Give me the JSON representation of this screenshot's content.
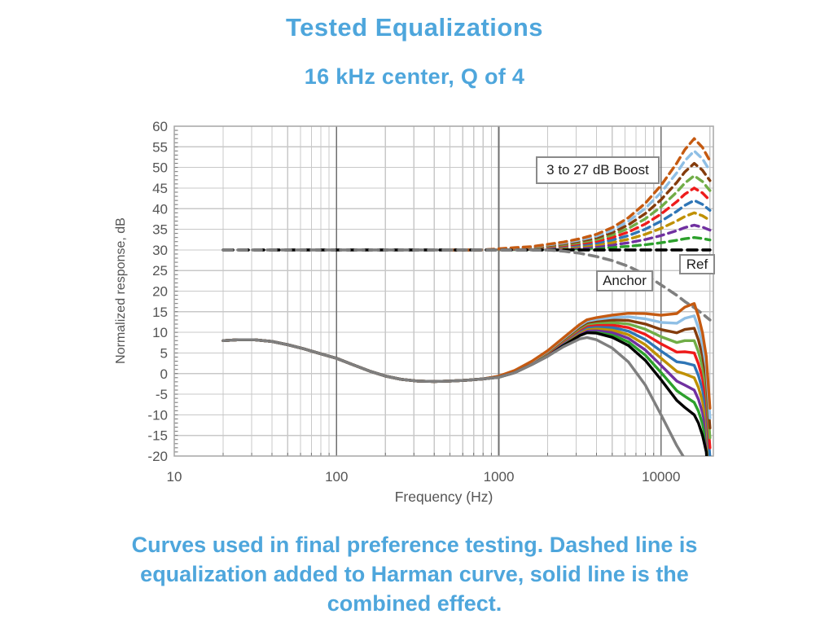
{
  "title": "Tested Equalizations",
  "subtitle": "16 kHz center, Q of 4",
  "caption": {
    "lines": [
      "Curves used in final preference testing. Dashed line is",
      "equalization added to Harman curve, solid line is the",
      "combined effect."
    ]
  },
  "theme": {
    "heading_color": "#4EA6DC",
    "axis_text_color": "#545454",
    "grid_color": "#C8C8C8",
    "grid_major_color": "#6F6F6F",
    "plot_border_color": "#A6A6A6",
    "annotation_border_color": "#8A8A8A",
    "annotation_text_color": "#1F1F1F"
  },
  "chart_data": {
    "type": "line",
    "title": "Tested Equalizations, 16 kHz center, Q of 4",
    "xlabel": "Frequency (Hz)",
    "ylabel": "Normalized response, dB",
    "xscale": "log",
    "xlim": [
      10,
      21000
    ],
    "ylim": [
      -20,
      60
    ],
    "xticks": [
      10,
      100,
      1000,
      10000
    ],
    "yticks": [
      60,
      55,
      50,
      45,
      40,
      35,
      30,
      25,
      20,
      15,
      10,
      5,
      0,
      -5,
      -10,
      -15,
      -20
    ],
    "ytick_minor_step_db": 1,
    "grid": true,
    "annotations": [
      {
        "label": "3 to 27 dB Boost"
      },
      {
        "label": "Ref"
      },
      {
        "label": "Anchor"
      }
    ],
    "eq_display_offset_db": 30,
    "eq_center_hz": 16000,
    "eq_q": 4,
    "boosts_db": [
      3,
      6,
      9,
      12,
      15,
      18,
      21,
      24,
      27
    ],
    "boost_colors": [
      "#2CA02C",
      "#7030A0",
      "#BF9000",
      "#2E75B6",
      "#EE1B1B",
      "#70AD47",
      "#843C0C",
      "#8FBFE5",
      "#C55A11"
    ],
    "ref_color": "#000000",
    "anchor_color": "#7F7F7F",
    "bell_shape": [
      [
        1000,
        0.01
      ],
      [
        1250,
        0.02
      ],
      [
        1600,
        0.03
      ],
      [
        2000,
        0.05
      ],
      [
        2500,
        0.07
      ],
      [
        3150,
        0.1
      ],
      [
        4000,
        0.14
      ],
      [
        5000,
        0.2
      ],
      [
        6300,
        0.29
      ],
      [
        8000,
        0.42
      ],
      [
        10000,
        0.58
      ],
      [
        12500,
        0.78
      ],
      [
        14000,
        0.9
      ],
      [
        16000,
        1.0
      ],
      [
        18000,
        0.92
      ],
      [
        20000,
        0.8
      ]
    ],
    "ref_response": [
      [
        20,
        8
      ],
      [
        25,
        8.2
      ],
      [
        31,
        8.2
      ],
      [
        40,
        7.8
      ],
      [
        50,
        7
      ],
      [
        63,
        6
      ],
      [
        80,
        4.8
      ],
      [
        100,
        3.7
      ],
      [
        125,
        2.2
      ],
      [
        160,
        0.6
      ],
      [
        200,
        -0.6
      ],
      [
        250,
        -1.4
      ],
      [
        315,
        -1.8
      ],
      [
        400,
        -1.9
      ],
      [
        500,
        -1.8
      ],
      [
        630,
        -1.6
      ],
      [
        800,
        -1.3
      ],
      [
        1000,
        -0.9
      ],
      [
        1250,
        0.2
      ],
      [
        1600,
        2.2
      ],
      [
        2000,
        4.2
      ],
      [
        2500,
        6.8
      ],
      [
        3150,
        9.2
      ],
      [
        3500,
        9.9
      ],
      [
        4000,
        9.8
      ],
      [
        5000,
        8.8
      ],
      [
        6300,
        6.8
      ],
      [
        8000,
        3.2
      ],
      [
        10000,
        -1.5
      ],
      [
        12500,
        -6.5
      ],
      [
        14000,
        -8.2
      ],
      [
        16000,
        -10
      ],
      [
        17000,
        -12
      ],
      [
        18000,
        -15
      ],
      [
        19000,
        -19
      ],
      [
        20000,
        -30
      ]
    ],
    "anchor_eq": [
      [
        20,
        0
      ],
      [
        2000,
        0
      ],
      [
        2500,
        -0.3
      ],
      [
        3150,
        -0.8
      ],
      [
        4000,
        -1.6
      ],
      [
        5000,
        -2.6
      ],
      [
        6300,
        -4
      ],
      [
        8000,
        -6
      ],
      [
        10000,
        -8.5
      ],
      [
        12500,
        -11
      ],
      [
        14000,
        -12.5
      ],
      [
        16000,
        -14
      ],
      [
        18000,
        -15.5
      ],
      [
        20000,
        -17
      ]
    ]
  }
}
